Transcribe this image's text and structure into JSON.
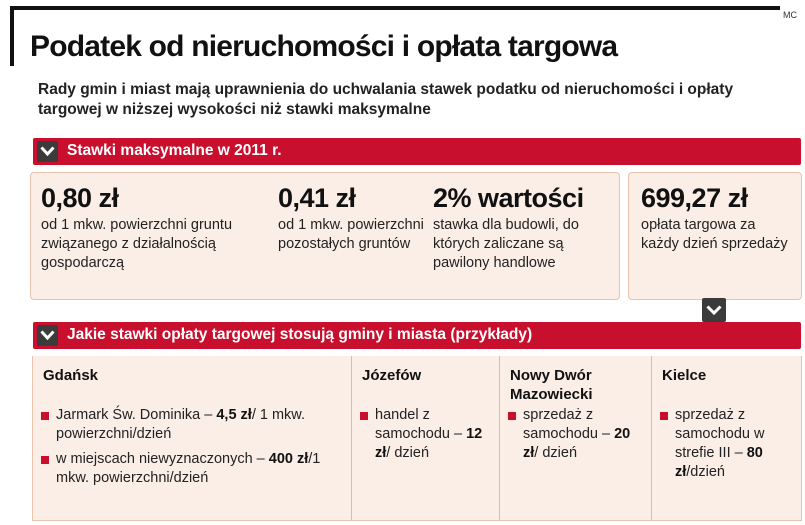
{
  "credit": "MC",
  "title": "Podatek od nieruchomości i opłata targowa",
  "subtitle": "Rady gmin i miast mają uprawnienia do uchwalania stawek podatku od nieruchomości i opłaty targowej w niższej wysokości niż stawki maksymalne",
  "section1": {
    "label": "Stawki maksymalne w 2011 r.",
    "rates": [
      {
        "value": "0,80 zł",
        "desc": "od 1 mkw. powierzchni gruntu związanego z działalnością gospodarczą"
      },
      {
        "value": "0,41 zł",
        "desc": "od 1 mkw. powierzchni pozostałych gruntów"
      },
      {
        "value": "2% wartości",
        "desc": "stawka dla budowli, do których zaliczane są pawilony handlowe"
      }
    ],
    "market_fee": {
      "value": "699,27 zł",
      "desc": "opłata targowa za każdy dzień sprzedaży"
    }
  },
  "section2": {
    "label": "Jakie stawki opłaty targowej stosują gminy i miasta (przykłady)",
    "cities": [
      {
        "name": "Gdańsk",
        "items": [
          {
            "pre": "Jarmark Św. Dominika – ",
            "bold": "4,5 zł",
            "post": "/ 1 mkw. powierzchni/dzień"
          },
          {
            "pre": "w miejscach niewyznaczonych – ",
            "bold": "400 zł",
            "post": "/1 mkw. powierzchni/dzień"
          }
        ]
      },
      {
        "name": "Józefów",
        "items": [
          {
            "pre": "handel z samochodu – ",
            "bold": "12 zł",
            "post": "/ dzień"
          }
        ]
      },
      {
        "name": "Nowy Dwór Mazowiecki",
        "items": [
          {
            "pre": "sprzedaż z samochodu – ",
            "bold": "20 zł",
            "post": "/ dzień"
          }
        ]
      },
      {
        "name": "Kielce",
        "items": [
          {
            "pre": "sprzedaż z samochodu w strefie III – ",
            "bold": "80 zł",
            "post": "/dzień"
          }
        ]
      }
    ]
  },
  "colors": {
    "accent": "#c8102e",
    "panel": "#fbeee6",
    "chevron": "#3b3b3b"
  }
}
